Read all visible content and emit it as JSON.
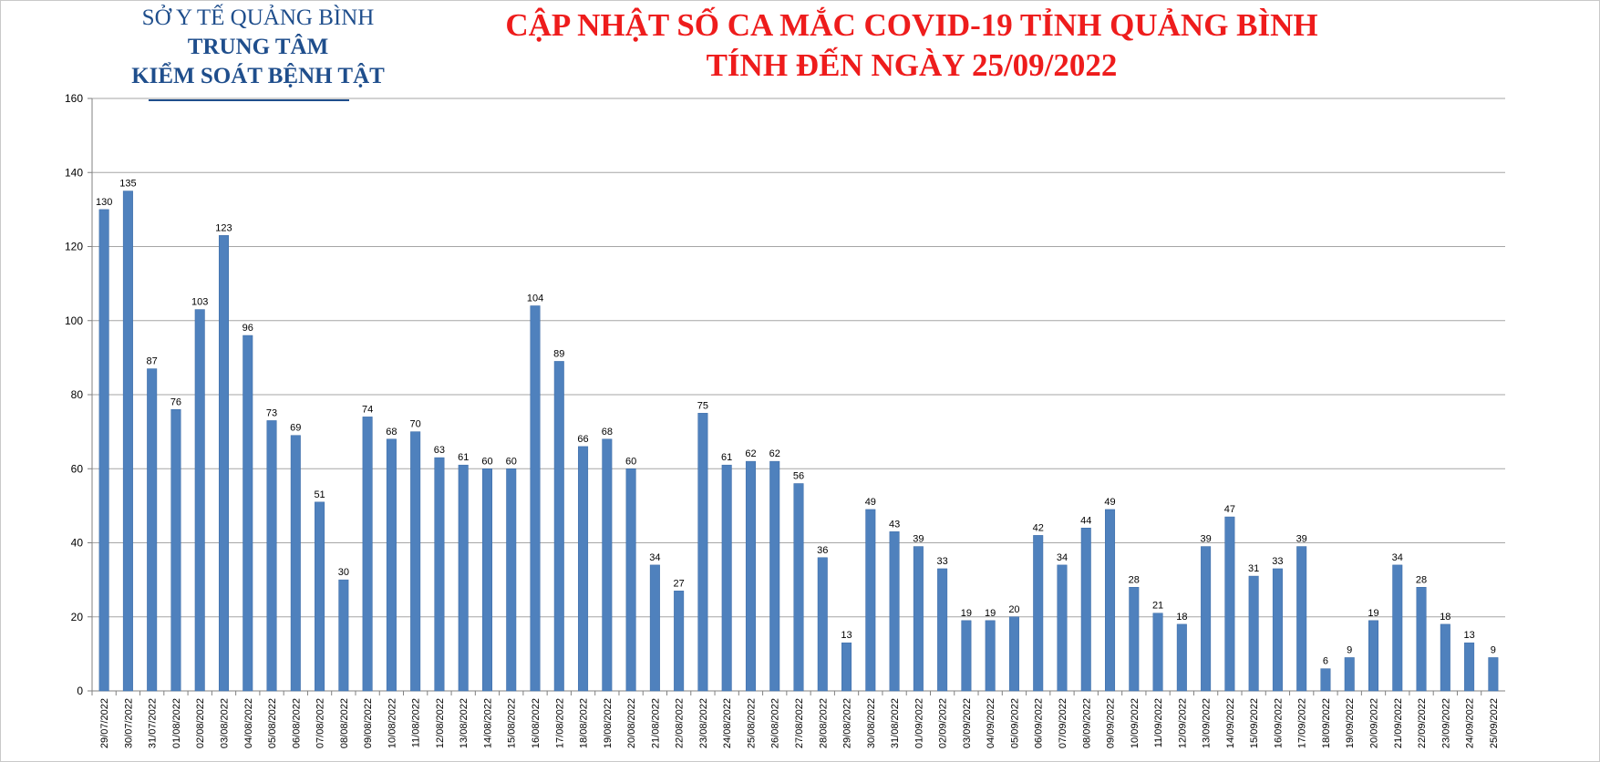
{
  "header": {
    "org_line1": "SỞ Y TẾ QUẢNG BÌNH",
    "org_line2": "TRUNG TÂM",
    "org_line3": "KIỂM SOÁT BỆNH TẬT",
    "title_line1": "CẬP NHẬT SỐ CA MẮC COVID-19 TỈNH QUẢNG BÌNH",
    "title_line2": "TÍNH ĐẾN NGÀY 25/09/2022"
  },
  "colors": {
    "bar": "#4f81bd",
    "bar_edge": "#3a6aa6",
    "grid": "#a6a6a6",
    "title": "#ee1c1c",
    "org": "#1f4e8c"
  },
  "chart_data": {
    "type": "bar",
    "title": "CẬP NHẬT SỐ CA MẮC COVID-19 TỈNH QUẢNG BÌNH TÍNH ĐẾN NGÀY 25/09/2022",
    "xlabel": "",
    "ylabel": "",
    "ylim": [
      0,
      160
    ],
    "yticks": [
      0,
      20,
      40,
      60,
      80,
      100,
      120,
      140,
      160
    ],
    "grid": true,
    "legend": "none",
    "categories": [
      "29/07/2022",
      "30/07/2022",
      "31/07/2022",
      "01/08/2022",
      "02/08/2022",
      "03/08/2022",
      "04/08/2022",
      "05/08/2022",
      "06/08/2022",
      "07/08/2022",
      "08/08/2022",
      "09/08/2022",
      "10/08/2022",
      "11/08/2022",
      "12/08/2022",
      "13/08/2022",
      "14/08/2022",
      "15/08/2022",
      "16/08/2022",
      "17/08/2022",
      "18/08/2022",
      "19/08/2022",
      "20/08/2022",
      "21/08/2022",
      "22/08/2022",
      "23/08/2022",
      "24/08/2022",
      "25/08/2022",
      "26/08/2022",
      "27/08/2022",
      "28/08/2022",
      "29/08/2022",
      "30/08/2022",
      "31/08/2022",
      "01/09/2022",
      "02/09/2022",
      "03/09/2022",
      "04/09/2022",
      "05/09/2022",
      "06/09/2022",
      "07/09/2022",
      "08/09/2022",
      "09/09/2022",
      "10/09/2022",
      "11/09/2022",
      "12/09/2022",
      "13/09/2022",
      "14/09/2022",
      "15/09/2022",
      "16/09/2022",
      "17/09/2022",
      "18/09/2022",
      "19/09/2022",
      "20/09/2022",
      "21/09/2022",
      "22/09/2022",
      "23/09/2022",
      "24/09/2022",
      "25/09/2022"
    ],
    "values": [
      130,
      135,
      87,
      76,
      103,
      123,
      96,
      73,
      69,
      51,
      30,
      74,
      68,
      70,
      63,
      61,
      60,
      60,
      104,
      89,
      66,
      68,
      60,
      34,
      27,
      75,
      61,
      62,
      62,
      56,
      36,
      13,
      49,
      43,
      39,
      33,
      19,
      19,
      20,
      42,
      34,
      44,
      49,
      28,
      21,
      18,
      39,
      47,
      31,
      33,
      39,
      6,
      9,
      19,
      34,
      28,
      18,
      13,
      9
    ]
  }
}
